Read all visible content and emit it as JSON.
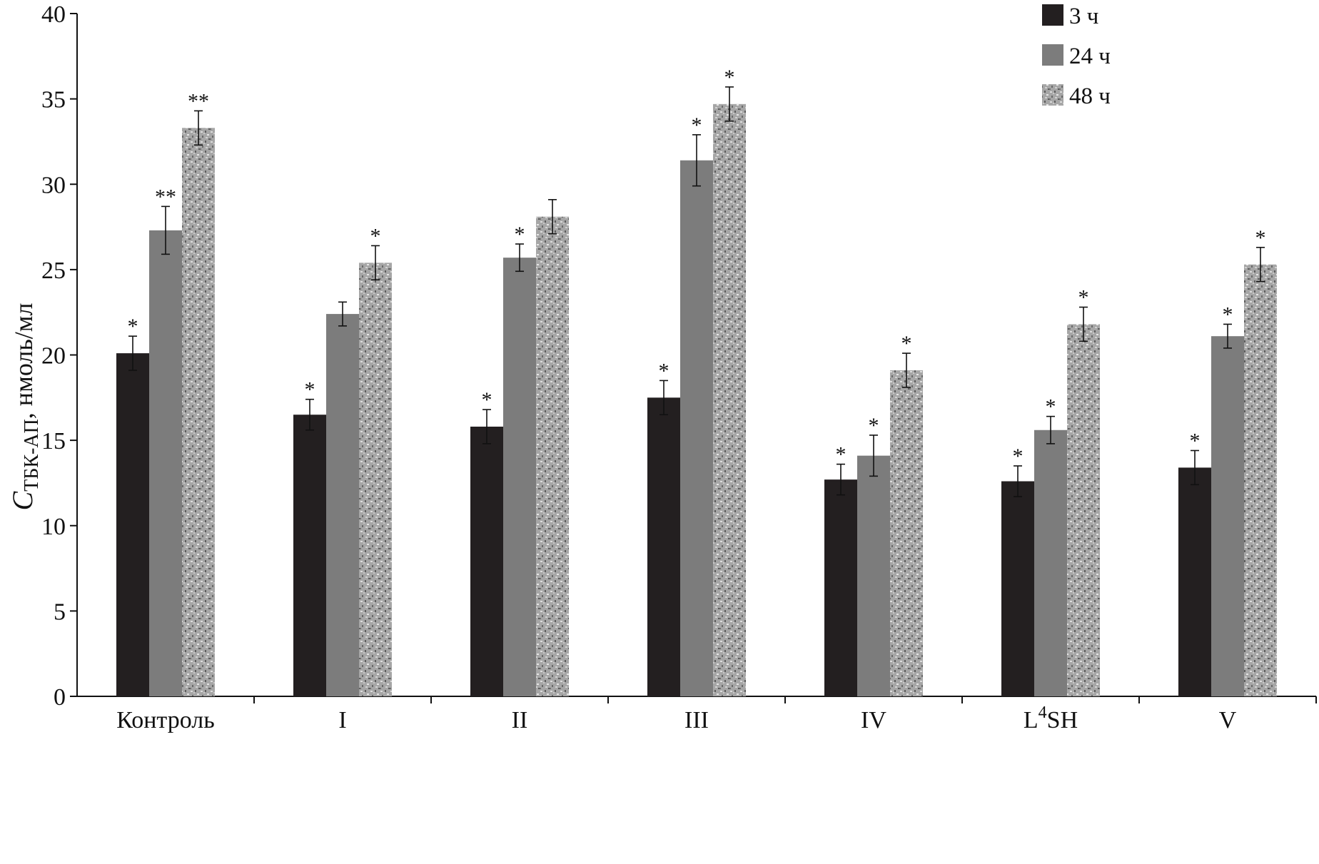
{
  "chart_data": {
    "type": "bar",
    "title": "",
    "xlabel": "",
    "ylabel": {
      "symbol": "C",
      "subscript": "ТБК-АП",
      "units": ", нмоль/мл"
    },
    "ylim": [
      0,
      40
    ],
    "yticks": [
      "0",
      "5",
      "10",
      "15",
      "20",
      "25",
      "30",
      "35",
      "40"
    ],
    "categories": [
      {
        "label": "Контроль"
      },
      {
        "label": "I"
      },
      {
        "label": "II"
      },
      {
        "label": "III"
      },
      {
        "label": "IV"
      },
      {
        "label": "L",
        "sup": "4",
        "tail": "SH"
      },
      {
        "label": "V"
      }
    ],
    "series": [
      {
        "name": "3 ч",
        "color": "#231f20",
        "pattern": "solid",
        "values": [
          20.1,
          16.5,
          15.8,
          17.5,
          12.7,
          12.6,
          13.4
        ],
        "errors": [
          1.0,
          0.9,
          1.0,
          1.0,
          0.9,
          0.9,
          1.0
        ],
        "marks": [
          "*",
          "*",
          "*",
          "*",
          "*",
          "*",
          "*"
        ]
      },
      {
        "name": "24 ч",
        "color": "#7c7c7c",
        "pattern": "solid",
        "values": [
          27.3,
          22.4,
          25.7,
          31.4,
          14.1,
          15.6,
          21.1
        ],
        "errors": [
          1.4,
          0.7,
          0.8,
          1.5,
          1.2,
          0.8,
          0.7
        ],
        "marks": [
          "**",
          "",
          "*",
          "*",
          "*",
          "*",
          "*"
        ]
      },
      {
        "name": "48 ч",
        "color": "#a8a8a8",
        "pattern": "speckled",
        "values": [
          33.3,
          25.4,
          28.1,
          34.7,
          19.1,
          21.8,
          25.3
        ],
        "errors": [
          1.0,
          1.0,
          1.0,
          1.0,
          1.0,
          1.0,
          1.0
        ],
        "marks": [
          "**",
          "*",
          "",
          "*",
          "*",
          "*",
          "*"
        ]
      }
    ],
    "legend_position": "top-right",
    "grid": false
  }
}
